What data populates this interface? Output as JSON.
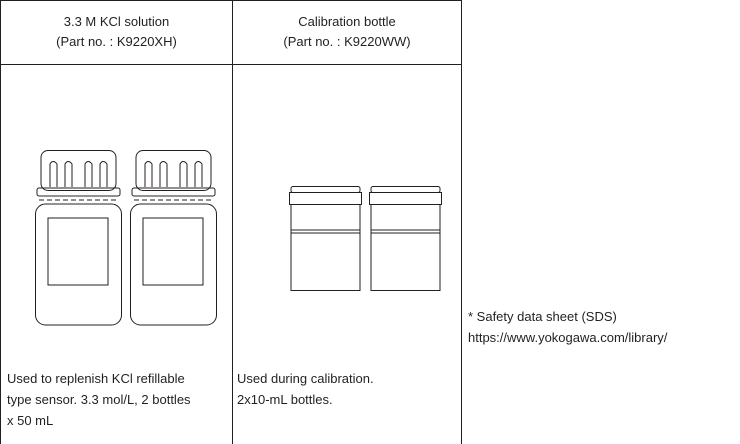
{
  "table": {
    "columns": [
      {
        "header": [
          "3.3 M KCl solution",
          "(Part no. : K9220XH)"
        ],
        "description": [
          "Used to replenish KCl refillable",
          "type sensor. 3.3 mol/L, 2 bottles",
          "x 50 mL"
        ]
      },
      {
        "header": [
          "Calibration bottle",
          "(Part no. : K9220WW)"
        ],
        "description": [
          "Used during calibration.",
          "2x10-mL bottles."
        ]
      }
    ]
  },
  "note": [
    "* Safety data sheet (SDS)",
    "https://www.yokogawa.com/library/"
  ]
}
